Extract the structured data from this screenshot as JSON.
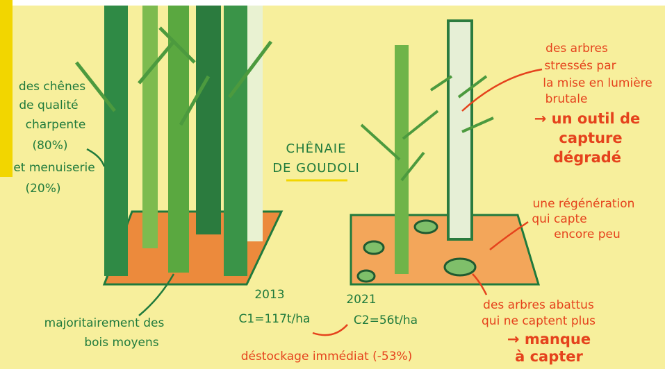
{
  "title": {
    "lines": [
      "CHÊNAIE",
      "DE GOUDOLI"
    ]
  },
  "left_note": {
    "lines": [
      "des chênes",
      "de qualité",
      "charpente",
      "(80%)",
      "et menuiserie",
      "(20%)"
    ]
  },
  "bottom_left_note": {
    "lines": [
      "majoritairement des",
      "bois moyens"
    ]
  },
  "year_2013": {
    "year": "2013",
    "stock": "C1=117t/ha"
  },
  "year_2021": {
    "year": "2021",
    "stock": "C2=56t/ha"
  },
  "destocking": "déstockage immédiat (-53%)",
  "stressed_trees": {
    "lines": [
      "des arbres",
      "stressés par",
      "la mise en lumière",
      "brutale"
    ],
    "consequence": [
      "→ un outil de",
      "capture",
      "dégradé"
    ]
  },
  "regeneration": {
    "lines": [
      "une régénération",
      "qui capte",
      "encore peu"
    ]
  },
  "felled_trees": {
    "lines": [
      "des arbres abattus",
      "qui ne captent plus"
    ],
    "consequence": [
      "→ manque",
      "à capter"
    ]
  }
}
